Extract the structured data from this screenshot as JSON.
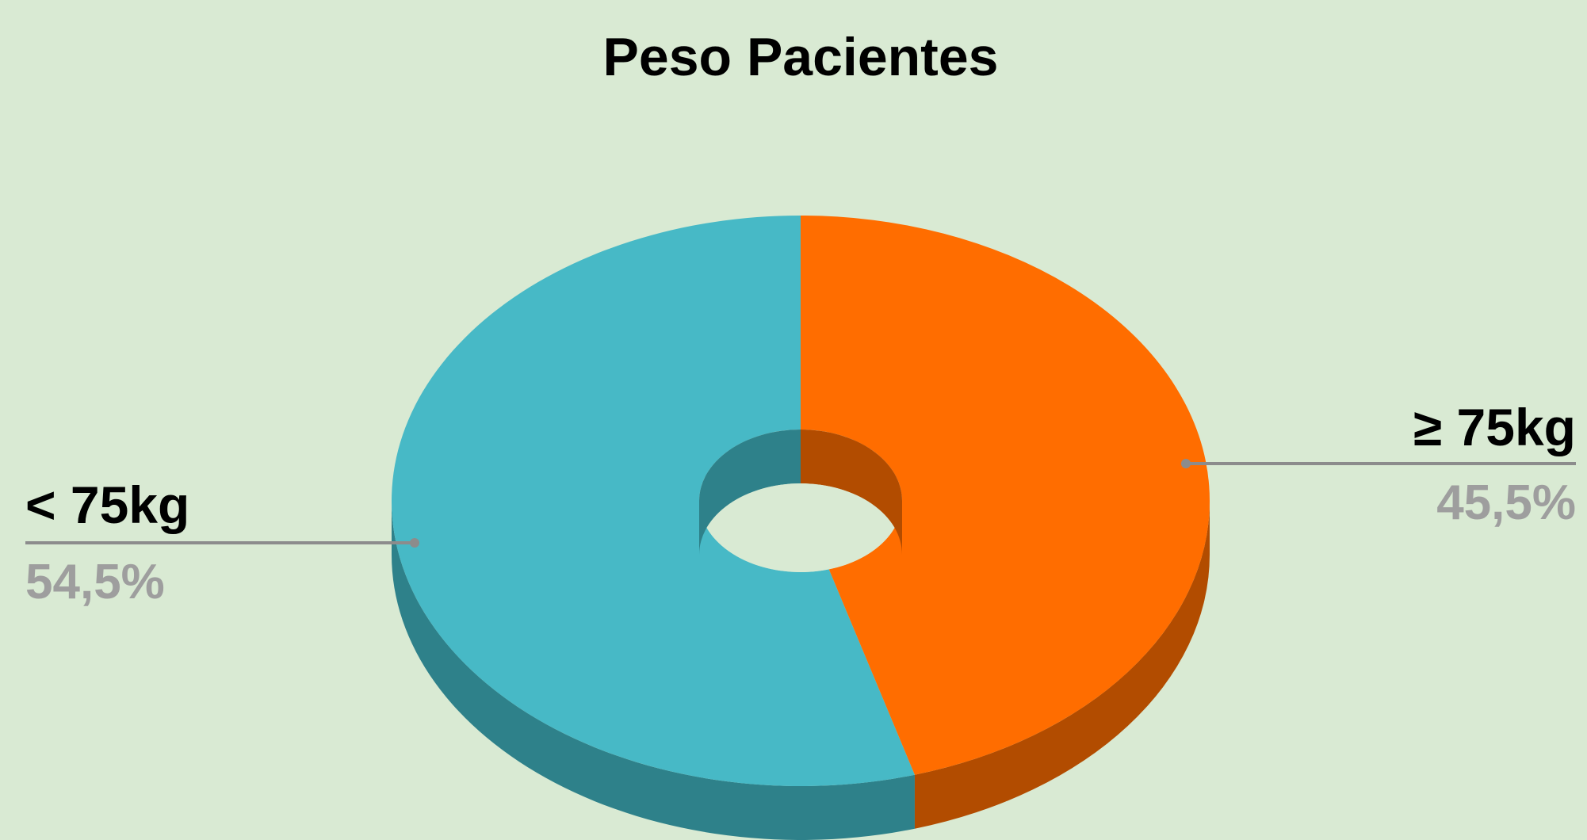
{
  "chart_data": {
    "type": "pie",
    "style": "3d-donut",
    "title": "Peso Pacientes",
    "categories": [
      "< 75kg",
      "≥ 75kg"
    ],
    "values": [
      54.5,
      45.5
    ],
    "value_labels": [
      "54,5%",
      "45,5%"
    ],
    "colors": [
      "#47b9c6",
      "#ff6d00"
    ],
    "side_colors": [
      "#2e818a",
      "#b24c00"
    ],
    "label_color": "#9e9e9e",
    "leader_color": "#8c8c8c",
    "background": "#d9ead3"
  }
}
